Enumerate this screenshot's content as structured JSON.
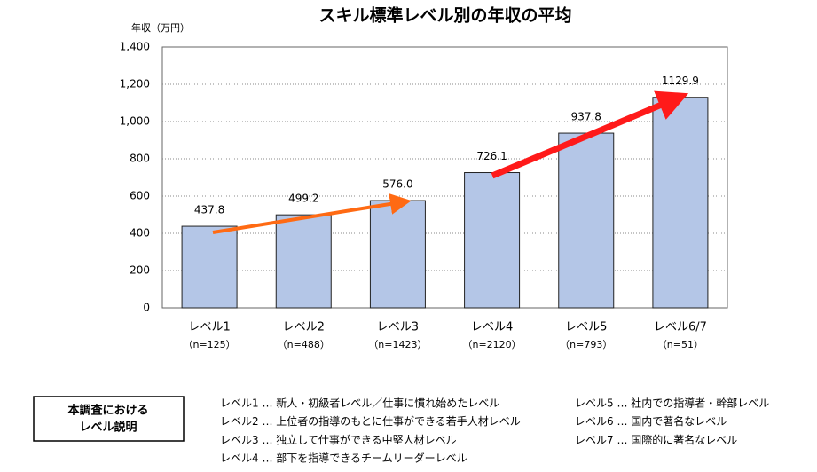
{
  "chart_data": {
    "type": "bar",
    "title": "スキル標準レベル別の年収の平均",
    "y_label": "年収（万円）",
    "categories": [
      "レベル1",
      "レベル2",
      "レベル3",
      "レベル4",
      "レベル5",
      "レベル6/7"
    ],
    "category_notes": [
      "（n=125）",
      "（n=488）",
      "（n=1423）",
      "（n=2120）",
      "（n=793）",
      "（n=51）"
    ],
    "values": [
      437.8,
      499.2,
      576.0,
      726.1,
      937.8,
      1129.9
    ],
    "value_labels": [
      "437.8",
      "499.2",
      "576.0",
      "726.1",
      "937.8",
      "1129.9"
    ],
    "color": "#b4c6e7",
    "ylim": [
      0,
      1400
    ],
    "yticks": [
      0,
      200,
      400,
      600,
      800,
      {
        "value": 1000,
        "label": "1,000"
      },
      {
        "value": 1200,
        "label": "1,200"
      },
      {
        "value": 1400,
        "label": "1,400"
      }
    ],
    "grid": true
  },
  "level_descriptions": {
    "heading": [
      "本調査における",
      "レベル説明"
    ],
    "left": [
      "レベル1 … 新人・初級者レベル／仕事に慣れ始めたレベル",
      "レベル2 … 上位者の指導のもとに仕事ができる若手人材レベル",
      "レベル3 … 独立して仕事ができる中堅人材レベル",
      "レベル4 … 部下を指導できるチームリーダーレベル"
    ],
    "right": [
      "レベル5 … 社内での指導者・幹部レベル",
      "レベル6 … 国内で著名なレベル",
      "レベル7 … 国際的に著名なレベル"
    ]
  }
}
